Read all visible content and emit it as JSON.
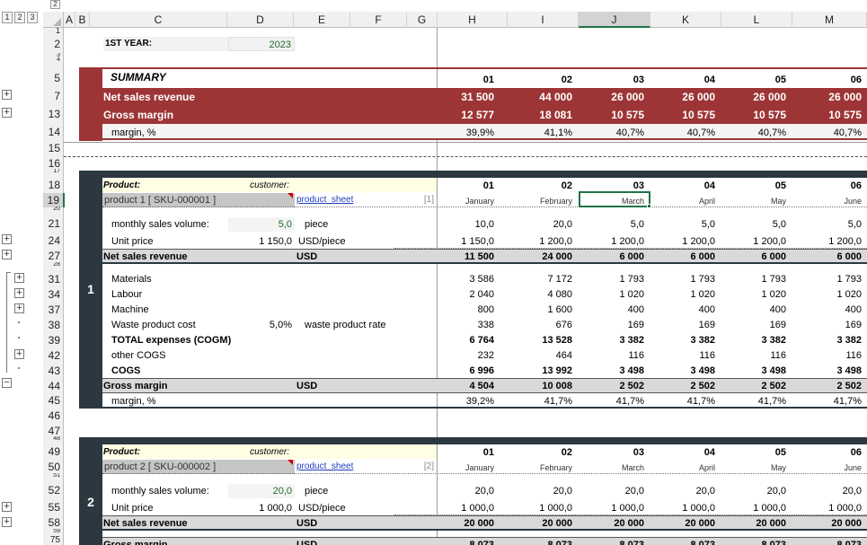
{
  "outline_levels": [
    "1",
    "2",
    "3"
  ],
  "outline_top_button": "2",
  "columns": [
    "A",
    "B",
    "C",
    "D",
    "E",
    "F",
    "G",
    "H",
    "I",
    "J",
    "K",
    "L",
    "M"
  ],
  "selected_column": "J",
  "selected_cell": "J19",
  "rows": {
    "r1": "1",
    "r2": "2",
    "r3": "3",
    "r4": "4",
    "r5": "5",
    "r7": "7",
    "r13": "13",
    "r14": "14",
    "r15": "15",
    "r16": "16",
    "r17": "17",
    "r18": "18",
    "r19": "19",
    "r20": "20",
    "r21": "21",
    "r24": "24",
    "r27": "27",
    "r28": "28",
    "r31": "31",
    "r34": "34",
    "r37": "37",
    "r38": "38",
    "r39": "39",
    "r42": "42",
    "r43": "43",
    "r44": "44",
    "r45": "45",
    "r46": "46",
    "r47": "47",
    "r48": "48",
    "r49": "49",
    "r50": "50",
    "r51": "51",
    "r52": "52",
    "r55": "55",
    "r58": "58",
    "r59": "59",
    "r75": "75"
  },
  "outline_buttons": {
    "expand": "+",
    "collapse": "−"
  },
  "first_year": {
    "label": "1ST YEAR:",
    "value": "2023"
  },
  "summary": {
    "title": "SUMMARY",
    "months": [
      "01",
      "02",
      "03",
      "04",
      "05",
      "06"
    ],
    "net_sales": {
      "label": "Net sales revenue",
      "values": [
        "31 500",
        "44 000",
        "26 000",
        "26 000",
        "26 000",
        "26 000"
      ]
    },
    "gross_margin": {
      "label": "Gross margin",
      "values": [
        "12 577",
        "18 081",
        "10 575",
        "10 575",
        "10 575",
        "10 575"
      ]
    },
    "margin_pct": {
      "label": "margin, %",
      "values": [
        "39,9%",
        "41,1%",
        "40,7%",
        "40,7%",
        "40,7%",
        "40,7%"
      ]
    }
  },
  "product1": {
    "block_no": "1",
    "product_label": "Product:",
    "customer_label": "customer:",
    "name": "product 1 [ SKU-000001 ]",
    "sheet_link": "product_sheet",
    "index": "[1]",
    "months": [
      "01",
      "02",
      "03",
      "04",
      "05",
      "06"
    ],
    "month_names": [
      "January",
      "February",
      "March",
      "April",
      "May",
      "June"
    ],
    "volume": {
      "label": "monthly sales volume:",
      "value": "5,0",
      "unit": "piece",
      "values": [
        "10,0",
        "20,0",
        "5,0",
        "5,0",
        "5,0",
        "5,0"
      ]
    },
    "unit_price": {
      "label": "Unit price",
      "value": "1 150,0",
      "unit": "USD/piece",
      "values": [
        "1 150,0",
        "1 200,0",
        "1 200,0",
        "1 200,0",
        "1 200,0",
        "1 200,0"
      ]
    },
    "net_sales": {
      "label": "Net sales revenue",
      "unit": "USD",
      "values": [
        "11 500",
        "24 000",
        "6 000",
        "6 000",
        "6 000",
        "6 000"
      ]
    },
    "materials": {
      "label": "Materials",
      "values": [
        "3 586",
        "7 172",
        "1 793",
        "1 793",
        "1 793",
        "1 793"
      ]
    },
    "labour": {
      "label": "Labour",
      "values": [
        "2 040",
        "4 080",
        "1 020",
        "1 020",
        "1 020",
        "1 020"
      ]
    },
    "machine": {
      "label": "Machine",
      "values": [
        "800",
        "1 600",
        "400",
        "400",
        "400",
        "400"
      ]
    },
    "waste": {
      "label": "Waste product cost",
      "rate": "5,0%",
      "rate_label": "waste product rate",
      "values": [
        "338",
        "676",
        "169",
        "169",
        "169",
        "169"
      ]
    },
    "total_expenses": {
      "label": "TOTAL expenses (COGM)",
      "values": [
        "6 764",
        "13 528",
        "3 382",
        "3 382",
        "3 382",
        "3 382"
      ]
    },
    "other_cogs": {
      "label": "other COGS",
      "values": [
        "232",
        "464",
        "116",
        "116",
        "116",
        "116"
      ]
    },
    "cogs": {
      "label": "COGS",
      "values": [
        "6 996",
        "13 992",
        "3 498",
        "3 498",
        "3 498",
        "3 498"
      ]
    },
    "gross_margin": {
      "label": "Gross margin",
      "unit": "USD",
      "values": [
        "4 504",
        "10 008",
        "2 502",
        "2 502",
        "2 502",
        "2 502"
      ]
    },
    "margin_pct": {
      "label": "margin, %",
      "values": [
        "39,2%",
        "41,7%",
        "41,7%",
        "41,7%",
        "41,7%",
        "41,7%"
      ]
    }
  },
  "product2": {
    "block_no": "2",
    "product_label": "Product:",
    "customer_label": "customer:",
    "name": "product 2 [ SKU-000002 ]",
    "sheet_link": "product_sheet",
    "index": "[2]",
    "months": [
      "01",
      "02",
      "03",
      "04",
      "05",
      "06"
    ],
    "month_names": [
      "January",
      "February",
      "March",
      "April",
      "May",
      "June"
    ],
    "volume": {
      "label": "monthly sales volume:",
      "value": "20,0",
      "unit": "piece",
      "values": [
        "20,0",
        "20,0",
        "20,0",
        "20,0",
        "20,0",
        "20,0"
      ]
    },
    "unit_price": {
      "label": "Unit price",
      "value": "1 000,0",
      "unit": "USD/piece",
      "values": [
        "1 000,0",
        "1 000,0",
        "1 000,0",
        "1 000,0",
        "1 000,0",
        "1 000,0"
      ]
    },
    "net_sales": {
      "label": "Net sales revenue",
      "unit": "USD",
      "values": [
        "20 000",
        "20 000",
        "20 000",
        "20 000",
        "20 000",
        "20 000"
      ]
    },
    "gross_margin": {
      "label": "Gross margin",
      "unit": "USD",
      "values": [
        "8 073",
        "8 073",
        "8 073",
        "8 073",
        "8 073",
        "8 073"
      ]
    }
  },
  "colors": {
    "summary_red": "#9d3536",
    "block_dark": "#2b3840",
    "input_green": "#1f6b2a",
    "link_blue": "#1f3fbf",
    "selection_green": "#217346"
  }
}
